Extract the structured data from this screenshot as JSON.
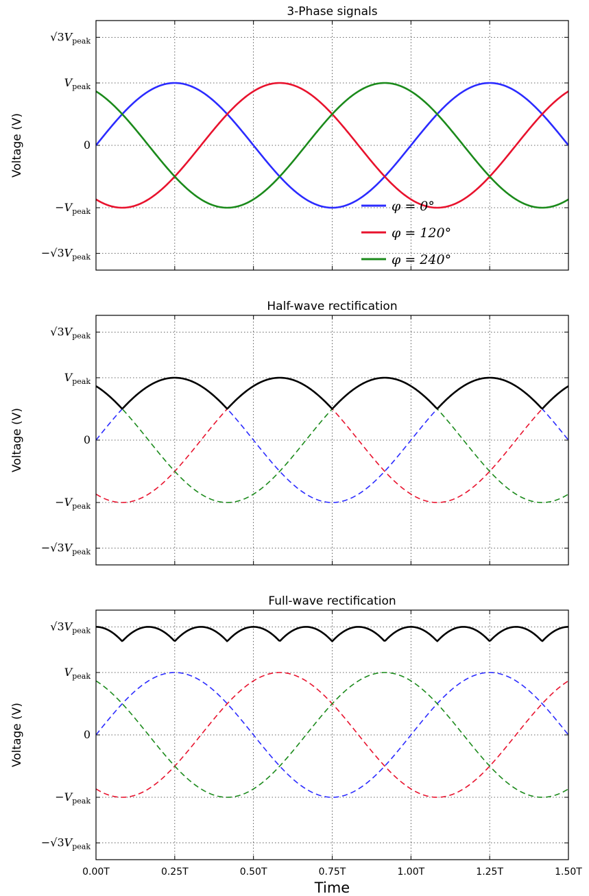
{
  "chart_data": [
    {
      "type": "line",
      "title": "3-Phase signals",
      "ylabel": "Voltage (V)",
      "xlabel": "",
      "x_unit": "T",
      "xlim": [
        0,
        1.5
      ],
      "ylim_in_vpeak": [
        -2.0,
        2.0
      ],
      "grid": true,
      "y_ticks": [
        {
          "root": "√3",
          "var": "V",
          "sub": "peak",
          "sign": "",
          "value": 1.732
        },
        {
          "root": "",
          "var": "V",
          "sub": "peak",
          "sign": "",
          "value": 1.0
        },
        {
          "root": "",
          "var": "0",
          "sub": "",
          "sign": "",
          "value": 0
        },
        {
          "root": "",
          "var": "V",
          "sub": "peak",
          "sign": "−",
          "value": -1.0
        },
        {
          "root": "√3",
          "var": "V",
          "sub": "peak",
          "sign": "−",
          "value": -1.732
        }
      ],
      "x_ticks": [],
      "series": [
        {
          "name": "φ = 0°",
          "phase_deg": 0,
          "color": "#2b2bff",
          "style": "solid"
        },
        {
          "name": "φ = 120°",
          "phase_deg": 120,
          "color": "#e8122d",
          "style": "solid"
        },
        {
          "name": "φ = 240°",
          "phase_deg": 240,
          "color": "#1b8a1b",
          "style": "solid"
        }
      ],
      "legend": {
        "placement": "lower-right",
        "entries": [
          "φ = 0°",
          "φ = 120°",
          "φ = 240°"
        ]
      }
    },
    {
      "type": "line",
      "title": "Half-wave rectification",
      "ylabel": "Voltage (V)",
      "xlabel": "",
      "x_unit": "T",
      "xlim": [
        0,
        1.5
      ],
      "ylim_in_vpeak": [
        -2.0,
        2.0
      ],
      "grid": true,
      "y_ticks": [
        {
          "root": "√3",
          "var": "V",
          "sub": "peak",
          "sign": "",
          "value": 1.732
        },
        {
          "root": "",
          "var": "V",
          "sub": "peak",
          "sign": "",
          "value": 1.0
        },
        {
          "root": "",
          "var": "0",
          "sub": "",
          "sign": "",
          "value": 0
        },
        {
          "root": "",
          "var": "V",
          "sub": "peak",
          "sign": "−",
          "value": -1.0
        },
        {
          "root": "√3",
          "var": "V",
          "sub": "peak",
          "sign": "−",
          "value": -1.732
        }
      ],
      "x_ticks": [],
      "series": [
        {
          "name": "",
          "phase_deg": 0,
          "color": "#2b2bff",
          "style": "dashed"
        },
        {
          "name": "",
          "phase_deg": 120,
          "color": "#e8122d",
          "style": "dashed"
        },
        {
          "name": "",
          "phase_deg": 240,
          "color": "#1b8a1b",
          "style": "dashed"
        },
        {
          "name": "",
          "kind": "max",
          "color": "#000000",
          "style": "solid"
        }
      ]
    },
    {
      "type": "line",
      "title": "Full-wave rectification",
      "ylabel": "Voltage (V)",
      "xlabel": "Time",
      "x_unit": "T",
      "xlim": [
        0,
        1.5
      ],
      "ylim_in_vpeak": [
        -2.0,
        2.0
      ],
      "grid": true,
      "y_ticks": [
        {
          "root": "√3",
          "var": "V",
          "sub": "peak",
          "sign": "",
          "value": 1.732
        },
        {
          "root": "",
          "var": "V",
          "sub": "peak",
          "sign": "",
          "value": 1.0
        },
        {
          "root": "",
          "var": "0",
          "sub": "",
          "sign": "",
          "value": 0
        },
        {
          "root": "",
          "var": "V",
          "sub": "peak",
          "sign": "−",
          "value": -1.0
        },
        {
          "root": "√3",
          "var": "V",
          "sub": "peak",
          "sign": "−",
          "value": -1.732
        }
      ],
      "x_ticks": [
        {
          "value": 0.0,
          "label": "0.00T"
        },
        {
          "value": 0.25,
          "label": "0.25T"
        },
        {
          "value": 0.5,
          "label": "0.50T"
        },
        {
          "value": 0.75,
          "label": "0.75T"
        },
        {
          "value": 1.0,
          "label": "1.00T"
        },
        {
          "value": 1.25,
          "label": "1.25T"
        },
        {
          "value": 1.5,
          "label": "1.50T"
        }
      ],
      "series": [
        {
          "name": "",
          "phase_deg": 0,
          "color": "#2b2bff",
          "style": "dashed"
        },
        {
          "name": "",
          "phase_deg": 120,
          "color": "#e8122d",
          "style": "dashed"
        },
        {
          "name": "",
          "phase_deg": 240,
          "color": "#1b8a1b",
          "style": "dashed"
        },
        {
          "name": "",
          "kind": "max_minus_min",
          "color": "#000000",
          "style": "solid"
        }
      ]
    }
  ]
}
